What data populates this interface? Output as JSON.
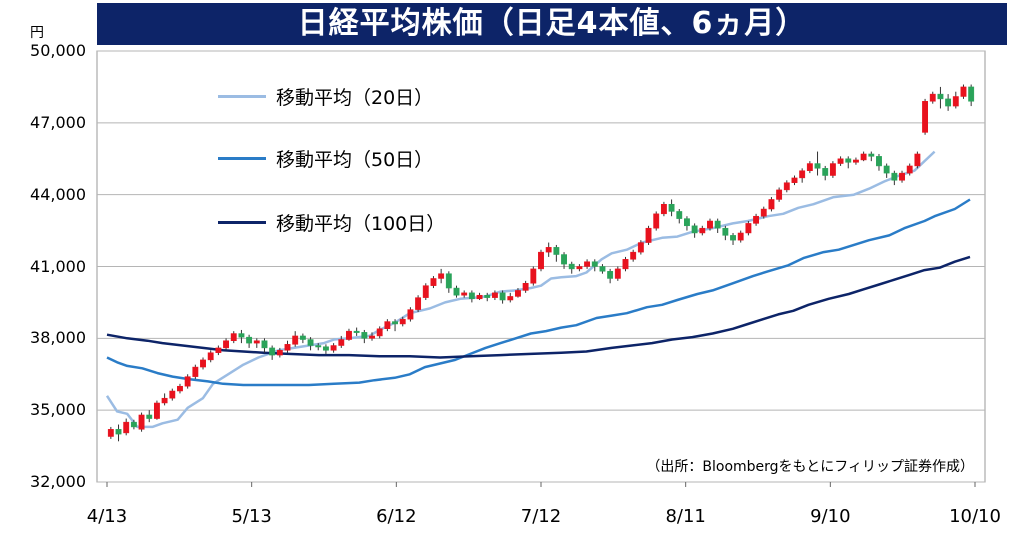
{
  "chart_data": {
    "type": "candlestick",
    "title": "日経平均株価（日足4本値、6ヵ月）",
    "y_unit": "円",
    "ylim": [
      32000,
      50000
    ],
    "y_ticks": [
      "32,000",
      "35,000",
      "38,000",
      "41,000",
      "44,000",
      "47,000",
      "50,000"
    ],
    "x_ticks": [
      "4/13",
      "5/13",
      "6/12",
      "7/12",
      "8/11",
      "9/10",
      "10/10"
    ],
    "source": "（出所：Bloombergをもとにフィリップ証券作成）",
    "colors": {
      "up": "#e8121e",
      "down": "#2aa35a",
      "ma20": "#9bbce3",
      "ma50": "#2a7cc7",
      "ma100": "#0d2468",
      "title_bg": "#0d2468"
    },
    "series": [
      {
        "name": "移動平均（20日）",
        "color": "#9bbce3",
        "points": [
          [
            0,
            35600
          ],
          [
            4,
            34950
          ],
          [
            8,
            34850
          ],
          [
            12,
            34300
          ],
          [
            18,
            34300
          ],
          [
            22,
            34450
          ],
          [
            28,
            34600
          ],
          [
            32,
            35100
          ],
          [
            38,
            35500
          ],
          [
            42,
            36100
          ],
          [
            48,
            36500
          ],
          [
            54,
            36900
          ],
          [
            60,
            37200
          ],
          [
            68,
            37500
          ],
          [
            74,
            37600
          ],
          [
            80,
            37700
          ],
          [
            86,
            37800
          ],
          [
            90,
            37950
          ],
          [
            96,
            38000
          ],
          [
            104,
            38100
          ],
          [
            108,
            38350
          ],
          [
            114,
            38650
          ],
          [
            120,
            39050
          ],
          [
            128,
            39250
          ],
          [
            134,
            39500
          ],
          [
            140,
            39650
          ],
          [
            146,
            39700
          ],
          [
            150,
            39750
          ],
          [
            156,
            39950
          ],
          [
            162,
            40000
          ],
          [
            168,
            40100
          ],
          [
            172,
            40200
          ],
          [
            176,
            40500
          ],
          [
            180,
            40550
          ],
          [
            186,
            40600
          ],
          [
            190,
            40750
          ],
          [
            196,
            41300
          ],
          [
            200,
            41550
          ],
          [
            206,
            41700
          ],
          [
            212,
            42000
          ],
          [
            220,
            42200
          ],
          [
            226,
            42250
          ],
          [
            232,
            42450
          ],
          [
            240,
            42600
          ],
          [
            248,
            42800
          ],
          [
            254,
            42900
          ],
          [
            262,
            43100
          ],
          [
            268,
            43200
          ],
          [
            274,
            43450
          ],
          [
            280,
            43600
          ],
          [
            288,
            43900
          ],
          [
            296,
            44000
          ],
          [
            302,
            44250
          ],
          [
            308,
            44550
          ],
          [
            314,
            44800
          ],
          [
            320,
            45000
          ],
          [
            328,
            45800
          ]
        ]
      },
      {
        "name": "移動平均（50日）",
        "color": "#2a7cc7",
        "points": [
          [
            0,
            37200
          ],
          [
            4,
            37000
          ],
          [
            8,
            36850
          ],
          [
            14,
            36750
          ],
          [
            20,
            36550
          ],
          [
            26,
            36400
          ],
          [
            32,
            36300
          ],
          [
            40,
            36200
          ],
          [
            46,
            36100
          ],
          [
            54,
            36050
          ],
          [
            62,
            36050
          ],
          [
            70,
            36050
          ],
          [
            80,
            36050
          ],
          [
            90,
            36100
          ],
          [
            100,
            36150
          ],
          [
            106,
            36250
          ],
          [
            114,
            36350
          ],
          [
            120,
            36500
          ],
          [
            126,
            36800
          ],
          [
            132,
            36950
          ],
          [
            138,
            37100
          ],
          [
            144,
            37350
          ],
          [
            150,
            37600
          ],
          [
            156,
            37800
          ],
          [
            162,
            38000
          ],
          [
            168,
            38200
          ],
          [
            174,
            38300
          ],
          [
            180,
            38450
          ],
          [
            186,
            38550
          ],
          [
            194,
            38850
          ],
          [
            200,
            38950
          ],
          [
            206,
            39050
          ],
          [
            214,
            39300
          ],
          [
            220,
            39400
          ],
          [
            226,
            39600
          ],
          [
            234,
            39850
          ],
          [
            240,
            40000
          ],
          [
            248,
            40300
          ],
          [
            256,
            40600
          ],
          [
            262,
            40800
          ],
          [
            270,
            41050
          ],
          [
            276,
            41350
          ],
          [
            284,
            41600
          ],
          [
            290,
            41700
          ],
          [
            296,
            41900
          ],
          [
            302,
            42100
          ],
          [
            310,
            42300
          ],
          [
            316,
            42600
          ],
          [
            324,
            42900
          ],
          [
            328,
            43100
          ],
          [
            336,
            43400
          ],
          [
            342,
            43800
          ]
        ]
      },
      {
        "name": "移動平均（100日）",
        "color": "#0d2468",
        "points": [
          [
            0,
            38150
          ],
          [
            8,
            38000
          ],
          [
            16,
            37900
          ],
          [
            22,
            37800
          ],
          [
            30,
            37700
          ],
          [
            38,
            37600
          ],
          [
            46,
            37500
          ],
          [
            54,
            37450
          ],
          [
            62,
            37400
          ],
          [
            72,
            37350
          ],
          [
            84,
            37300
          ],
          [
            96,
            37300
          ],
          [
            108,
            37250
          ],
          [
            120,
            37250
          ],
          [
            132,
            37200
          ],
          [
            144,
            37250
          ],
          [
            156,
            37300
          ],
          [
            168,
            37350
          ],
          [
            180,
            37400
          ],
          [
            190,
            37450
          ],
          [
            200,
            37600
          ],
          [
            208,
            37700
          ],
          [
            216,
            37800
          ],
          [
            224,
            37950
          ],
          [
            232,
            38050
          ],
          [
            240,
            38200
          ],
          [
            248,
            38400
          ],
          [
            254,
            38600
          ],
          [
            260,
            38800
          ],
          [
            266,
            39000
          ],
          [
            272,
            39150
          ],
          [
            278,
            39400
          ],
          [
            286,
            39650
          ],
          [
            294,
            39850
          ],
          [
            300,
            40050
          ],
          [
            306,
            40250
          ],
          [
            312,
            40450
          ],
          [
            318,
            40650
          ],
          [
            324,
            40850
          ],
          [
            330,
            40950
          ],
          [
            336,
            41200
          ],
          [
            342,
            41400
          ]
        ]
      }
    ],
    "candles": [
      [
        33900,
        34200,
        33800,
        34300
      ],
      [
        34200,
        34000,
        33700,
        34400
      ],
      [
        34050,
        34500,
        33950,
        34650
      ],
      [
        34500,
        34300,
        34200,
        34600
      ],
      [
        34200,
        34800,
        34100,
        34900
      ],
      [
        34800,
        34650,
        34500,
        35000
      ],
      [
        34650,
        35300,
        34600,
        35400
      ],
      [
        35300,
        35500,
        35200,
        35700
      ],
      [
        35500,
        35800,
        35400,
        35900
      ],
      [
        35800,
        36000,
        35700,
        36100
      ],
      [
        36000,
        36400,
        35900,
        36500
      ],
      [
        36400,
        36800,
        36300,
        36900
      ],
      [
        36800,
        37100,
        36700,
        37200
      ],
      [
        37100,
        37400,
        37000,
        37500
      ],
      [
        37400,
        37600,
        37300,
        37700
      ],
      [
        37600,
        37900,
        37500,
        38000
      ],
      [
        37900,
        38200,
        37800,
        38300
      ],
      [
        38200,
        38050,
        37800,
        38350
      ],
      [
        38050,
        37800,
        37600,
        38150
      ],
      [
        37800,
        37900,
        37600,
        38000
      ],
      [
        37900,
        37600,
        37400,
        38000
      ],
      [
        37600,
        37300,
        37100,
        37700
      ],
      [
        37300,
        37500,
        37200,
        37600
      ],
      [
        37500,
        37750,
        37400,
        37900
      ],
      [
        37750,
        38100,
        37650,
        38300
      ],
      [
        38100,
        37950,
        37800,
        38200
      ],
      [
        37950,
        37700,
        37500,
        38050
      ],
      [
        37700,
        37650,
        37500,
        37800
      ],
      [
        37650,
        37500,
        37350,
        37750
      ],
      [
        37500,
        37700,
        37400,
        37800
      ],
      [
        37700,
        37950,
        37600,
        38100
      ],
      [
        37950,
        38300,
        37900,
        38400
      ],
      [
        38300,
        38250,
        38100,
        38450
      ],
      [
        38250,
        38000,
        37800,
        38350
      ],
      [
        38000,
        38100,
        37900,
        38250
      ],
      [
        38100,
        38400,
        38000,
        38500
      ],
      [
        38400,
        38700,
        38300,
        38800
      ],
      [
        38700,
        38600,
        38300,
        38800
      ],
      [
        38600,
        38800,
        38500,
        38900
      ],
      [
        38800,
        39200,
        38700,
        39300
      ],
      [
        39200,
        39700,
        39100,
        39800
      ],
      [
        39700,
        40200,
        39600,
        40300
      ],
      [
        40200,
        40500,
        40100,
        40600
      ],
      [
        40500,
        40700,
        40300,
        40900
      ],
      [
        40700,
        40100,
        39900,
        40800
      ],
      [
        40100,
        39800,
        39700,
        40200
      ],
      [
        39800,
        39900,
        39700,
        40000
      ],
      [
        39900,
        39650,
        39500,
        40000
      ],
      [
        39650,
        39800,
        39600,
        39900
      ],
      [
        39800,
        39700,
        39550,
        39900
      ],
      [
        39700,
        39900,
        39600,
        40000
      ],
      [
        39900,
        39600,
        39450,
        40000
      ],
      [
        39600,
        39750,
        39500,
        39900
      ],
      [
        39750,
        40000,
        39700,
        40100
      ],
      [
        40000,
        40300,
        39900,
        40400
      ],
      [
        40300,
        40900,
        40200,
        41000
      ],
      [
        40900,
        41600,
        40800,
        41700
      ],
      [
        41600,
        41800,
        41400,
        42000
      ],
      [
        41800,
        41500,
        41200,
        41900
      ],
      [
        41500,
        41100,
        40900,
        41600
      ],
      [
        41100,
        40900,
        40700,
        41200
      ],
      [
        40900,
        41000,
        40800,
        41100
      ],
      [
        41000,
        41200,
        40900,
        41300
      ],
      [
        41200,
        41000,
        40800,
        41300
      ],
      [
        41000,
        40800,
        40700,
        41100
      ],
      [
        40800,
        40500,
        40300,
        40900
      ],
      [
        40500,
        40900,
        40400,
        41000
      ],
      [
        40900,
        41300,
        40800,
        41400
      ],
      [
        41300,
        41600,
        41200,
        41700
      ],
      [
        41600,
        42000,
        41500,
        42100
      ],
      [
        42000,
        42600,
        41900,
        42700
      ],
      [
        42600,
        43200,
        42500,
        43300
      ],
      [
        43200,
        43600,
        43100,
        43700
      ],
      [
        43600,
        43300,
        43100,
        43800
      ],
      [
        43300,
        43000,
        42800,
        43400
      ],
      [
        43000,
        42700,
        42500,
        43100
      ],
      [
        42700,
        42400,
        42200,
        42800
      ],
      [
        42400,
        42600,
        42300,
        42700
      ],
      [
        42600,
        42900,
        42500,
        43000
      ],
      [
        42900,
        42600,
        42400,
        43000
      ],
      [
        42600,
        42300,
        42100,
        42700
      ],
      [
        42300,
        42100,
        41900,
        42400
      ],
      [
        42100,
        42400,
        42000,
        42500
      ],
      [
        42400,
        42800,
        42300,
        42900
      ],
      [
        42800,
        43100,
        42700,
        43200
      ],
      [
        43100,
        43400,
        43000,
        43500
      ],
      [
        43400,
        43800,
        43300,
        43900
      ],
      [
        43800,
        44200,
        43700,
        44300
      ],
      [
        44200,
        44500,
        44100,
        44600
      ],
      [
        44500,
        44700,
        44400,
        44800
      ],
      [
        44700,
        45000,
        44500,
        45100
      ],
      [
        45000,
        45300,
        44900,
        45400
      ],
      [
        45300,
        45100,
        44800,
        45800
      ],
      [
        45100,
        44800,
        44600,
        45200
      ],
      [
        44800,
        45300,
        44700,
        45400
      ],
      [
        45300,
        45500,
        45200,
        45600
      ],
      [
        45500,
        45350,
        45100,
        45600
      ],
      [
        45350,
        45450,
        45250,
        45550
      ],
      [
        45450,
        45700,
        45400,
        45800
      ],
      [
        45700,
        45600,
        45400,
        45800
      ],
      [
        45600,
        45200,
        45000,
        45700
      ],
      [
        45200,
        44900,
        44700,
        45300
      ],
      [
        44900,
        44600,
        44400,
        45000
      ],
      [
        44600,
        44900,
        44500,
        45000
      ],
      [
        44900,
        45200,
        44800,
        45300
      ],
      [
        45200,
        45700,
        45100,
        45800
      ],
      [
        46600,
        47900,
        46500,
        48000
      ],
      [
        47900,
        48200,
        47800,
        48300
      ],
      [
        48200,
        48000,
        47600,
        48500
      ],
      [
        48000,
        47700,
        47500,
        48200
      ],
      [
        47700,
        48100,
        47600,
        48300
      ],
      [
        48100,
        48500,
        48000,
        48600
      ],
      [
        48500,
        47900,
        47700,
        48600
      ]
    ]
  }
}
